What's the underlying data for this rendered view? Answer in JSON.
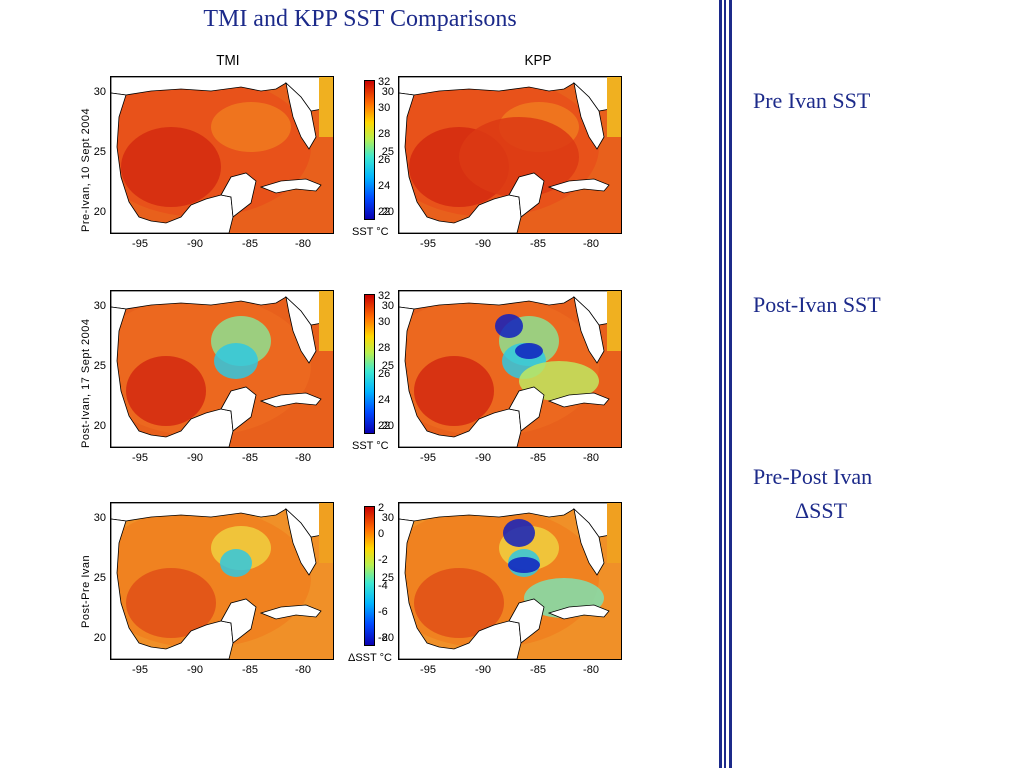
{
  "title": "TMI and KPP SST Comparisons",
  "columns": [
    "TMI",
    "KPP"
  ],
  "rows": [
    {
      "label": "Pre-Ivan, 10 Sept 2004",
      "colorbar": {
        "ticks": [
          "32",
          "30",
          "28",
          "26",
          "24",
          "22"
        ],
        "label": "SST °C"
      }
    },
    {
      "label": "Post-Ivan, 17 Sept 2004",
      "colorbar": {
        "ticks": [
          "32",
          "30",
          "28",
          "26",
          "24",
          "22"
        ],
        "label": "SST °C"
      }
    },
    {
      "label": "Post-Pre Ivan",
      "colorbar": {
        "ticks": [
          "2",
          "0",
          "-2",
          "-4",
          "-6",
          "-8"
        ],
        "label": "ΔSST °C"
      }
    }
  ],
  "y_ticks": [
    "30",
    "25",
    "20"
  ],
  "x_ticks": [
    "-95",
    "-90",
    "-85",
    "-80"
  ],
  "side_labels": {
    "pre": "Pre Ivan SST",
    "post": "Post-Ivan SST",
    "diff_line1": "Pre-Post Ivan",
    "diff_line2": "ΔSST"
  },
  "colors": {
    "title": "#1c2a8a",
    "warm": "#e8501a",
    "hot": "#d42a10",
    "cool": "#30c8e0",
    "cold": "#1020c0",
    "land": "#ffffff"
  }
}
